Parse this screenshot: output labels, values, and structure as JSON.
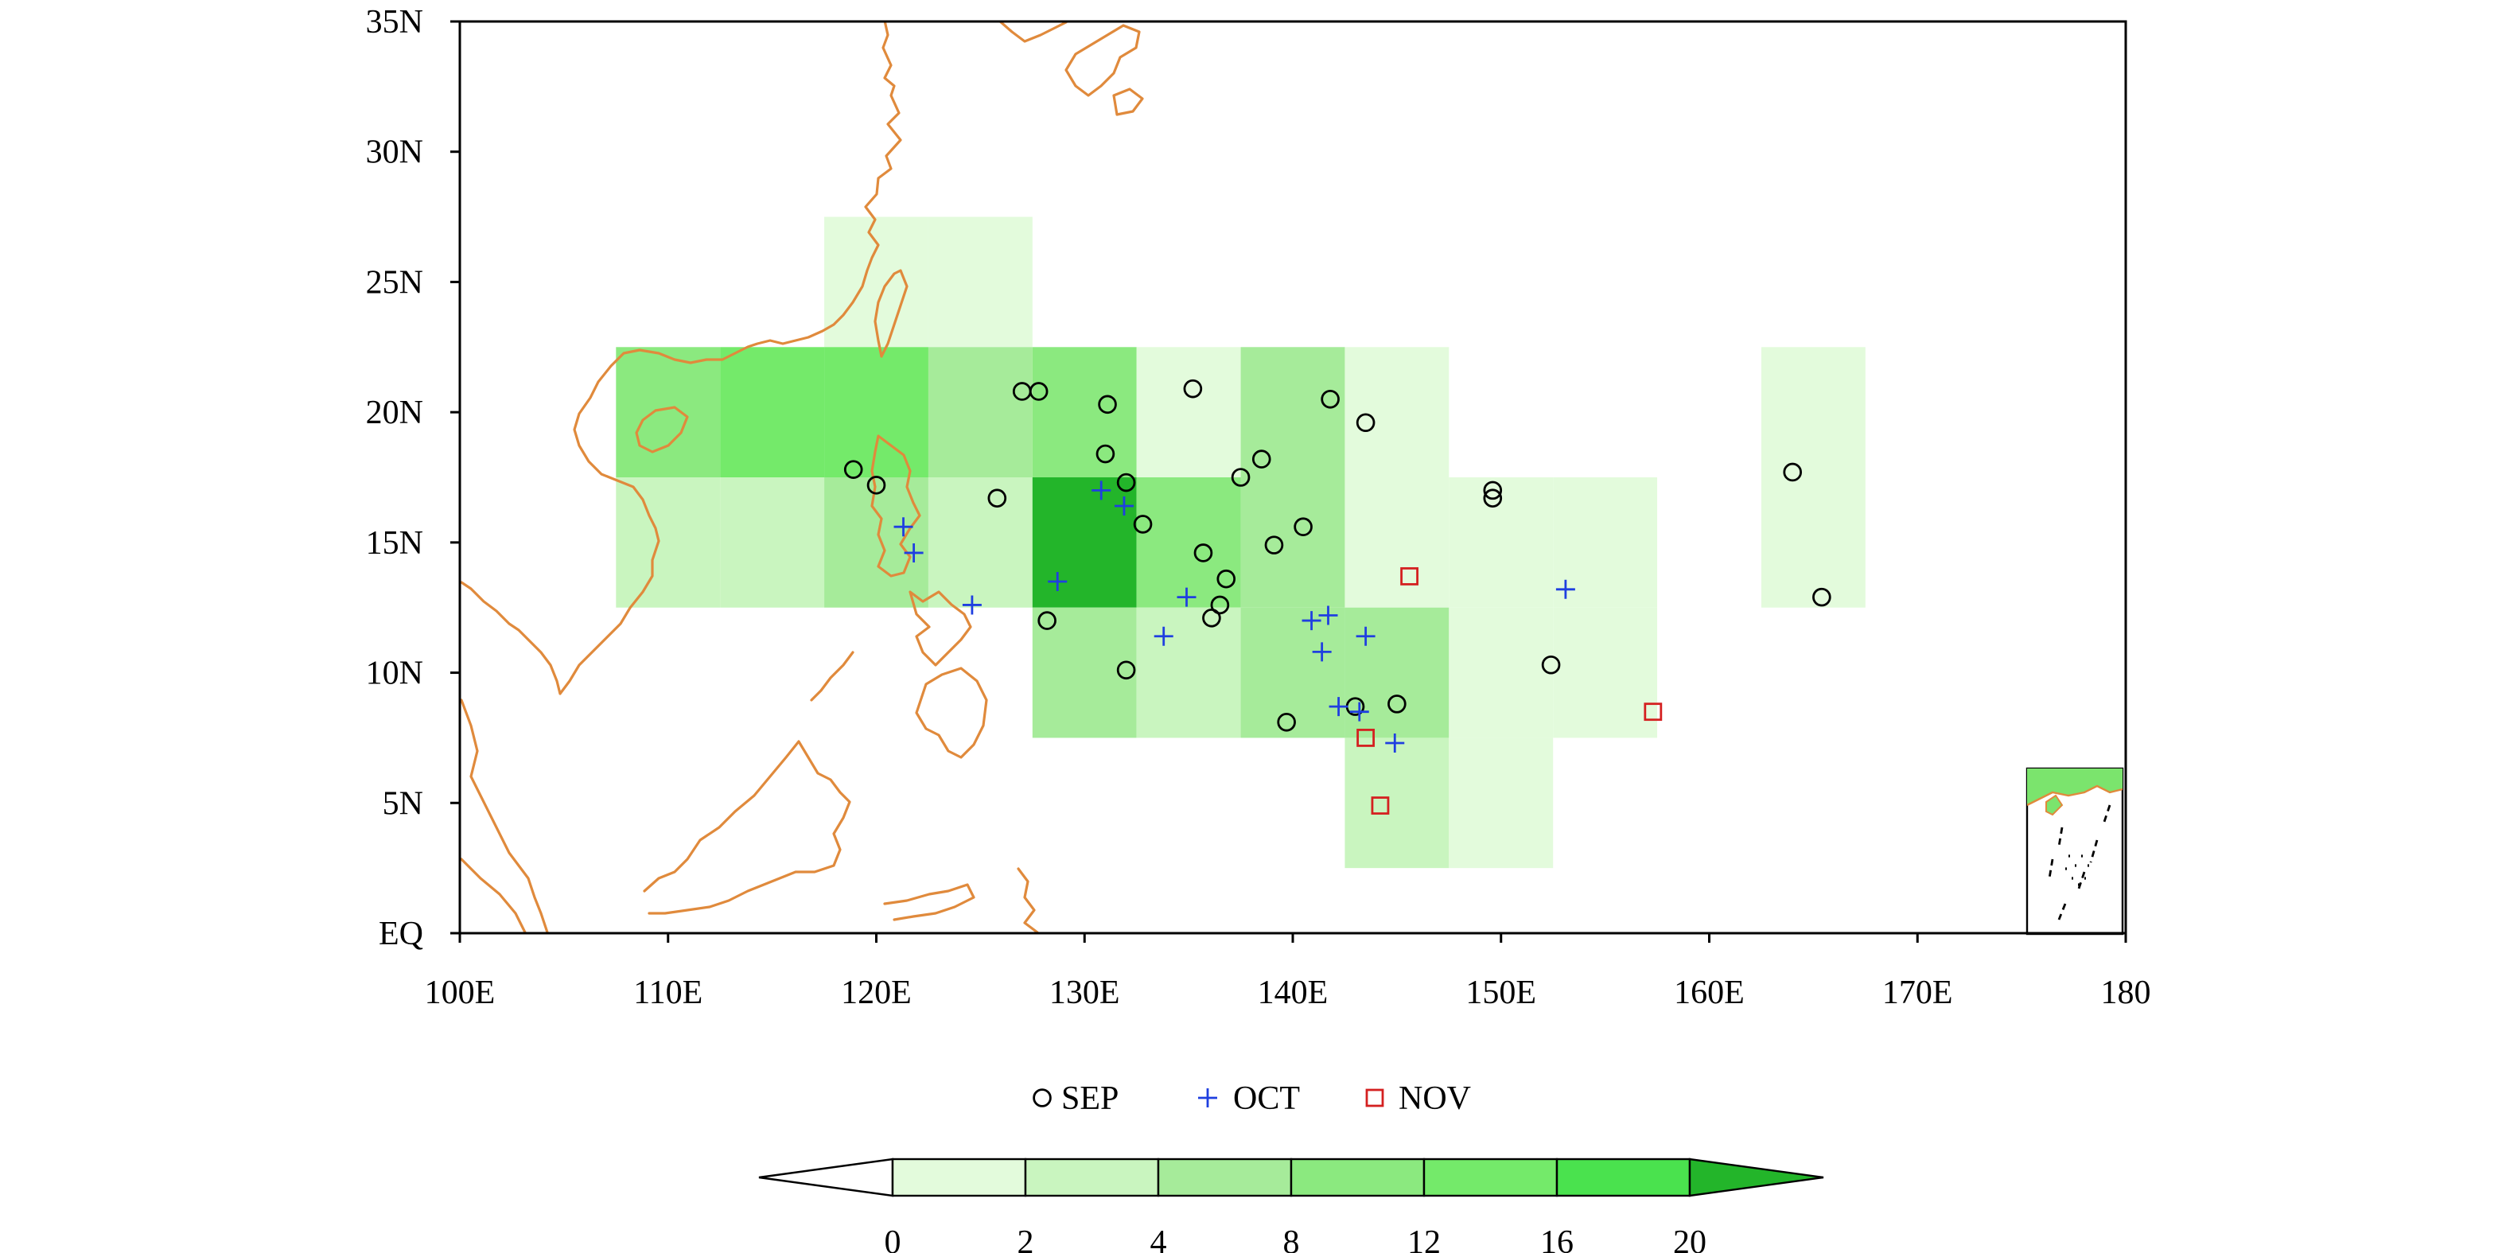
{
  "colors": {
    "coast": "#e08a3c",
    "frame": "#000000",
    "sep_marker": "#000000",
    "oct_marker": "#1f3fe0",
    "nov_marker": "#d42020",
    "inset_dash": "#000000"
  },
  "map": {
    "lon_ticks": [
      "100E",
      "110E",
      "120E",
      "130E",
      "140E",
      "150E",
      "160E",
      "170E",
      "180"
    ],
    "lat_ticks": [
      "EQ",
      "5N",
      "10N",
      "15N",
      "20N",
      "25N",
      "30N",
      "35N"
    ],
    "lon_range": [
      100,
      180
    ],
    "lat_range": [
      0,
      35
    ],
    "grid_cell_deg": 5
  },
  "density_grid": {
    "comment_free": true,
    "cells": [
      {
        "lon": 120,
        "lat": 25,
        "level": 1
      },
      {
        "lon": 125,
        "lat": 25,
        "level": 1
      },
      {
        "lon": 110,
        "lat": 20,
        "level": 4
      },
      {
        "lon": 115,
        "lat": 20,
        "level": 5
      },
      {
        "lon": 120,
        "lat": 20,
        "level": 5
      },
      {
        "lon": 125,
        "lat": 20,
        "level": 3
      },
      {
        "lon": 130,
        "lat": 20,
        "level": 4
      },
      {
        "lon": 135,
        "lat": 20,
        "level": 1
      },
      {
        "lon": 140,
        "lat": 20,
        "level": 3
      },
      {
        "lon": 145,
        "lat": 20,
        "level": 1
      },
      {
        "lon": 165,
        "lat": 20,
        "level": 1
      },
      {
        "lon": 110,
        "lat": 15,
        "level": 2
      },
      {
        "lon": 115,
        "lat": 15,
        "level": 2
      },
      {
        "lon": 120,
        "lat": 15,
        "level": 3
      },
      {
        "lon": 125,
        "lat": 15,
        "level": 2
      },
      {
        "lon": 130,
        "lat": 15,
        "level": 7
      },
      {
        "lon": 135,
        "lat": 15,
        "level": 4
      },
      {
        "lon": 140,
        "lat": 15,
        "level": 3
      },
      {
        "lon": 145,
        "lat": 15,
        "level": 1
      },
      {
        "lon": 150,
        "lat": 15,
        "level": 1
      },
      {
        "lon": 155,
        "lat": 15,
        "level": 1
      },
      {
        "lon": 165,
        "lat": 15,
        "level": 1
      },
      {
        "lon": 130,
        "lat": 10,
        "level": 3
      },
      {
        "lon": 135,
        "lat": 10,
        "level": 2
      },
      {
        "lon": 140,
        "lat": 10,
        "level": 3
      },
      {
        "lon": 145,
        "lat": 10,
        "level": 3
      },
      {
        "lon": 150,
        "lat": 10,
        "level": 1
      },
      {
        "lon": 155,
        "lat": 10,
        "level": 1
      },
      {
        "lon": 145,
        "lat": 5,
        "level": 2
      },
      {
        "lon": 150,
        "lat": 5,
        "level": 1
      }
    ]
  },
  "colorbar": {
    "labels": [
      "0",
      "2",
      "4",
      "8",
      "12",
      "16",
      "20"
    ],
    "level_colors": [
      "#ffffff",
      "#e3fbdc",
      "#c9f5bf",
      "#a6eb9a",
      "#8be97f",
      "#74ea6a",
      "#4ae24e",
      "#23b52a"
    ]
  },
  "legend": {
    "sep_label": "SEP",
    "oct_label": "OCT",
    "nov_label": "NOV"
  },
  "points": {
    "sep": [
      [
        118.9,
        17.8
      ],
      [
        120.0,
        17.2
      ],
      [
        125.8,
        16.7
      ],
      [
        127.0,
        20.8
      ],
      [
        127.8,
        20.8
      ],
      [
        131.1,
        20.3
      ],
      [
        131.0,
        18.4
      ],
      [
        132.0,
        17.3
      ],
      [
        132.8,
        15.7
      ],
      [
        128.2,
        12.0
      ],
      [
        132.0,
        10.1
      ],
      [
        135.2,
        20.9
      ],
      [
        135.7,
        14.6
      ],
      [
        136.8,
        13.6
      ],
      [
        136.5,
        12.6
      ],
      [
        136.1,
        12.1
      ],
      [
        137.5,
        17.5
      ],
      [
        138.5,
        18.2
      ],
      [
        139.1,
        14.9
      ],
      [
        140.5,
        15.6
      ],
      [
        139.7,
        8.1
      ],
      [
        141.8,
        20.5
      ],
      [
        143.5,
        19.6
      ],
      [
        143.0,
        8.7
      ],
      [
        145.0,
        8.8
      ],
      [
        149.6,
        17.0
      ],
      [
        149.6,
        16.7
      ],
      [
        152.4,
        10.3
      ],
      [
        164.0,
        17.7
      ],
      [
        165.4,
        12.9
      ]
    ],
    "oct": [
      [
        121.3,
        15.6
      ],
      [
        121.8,
        14.6
      ],
      [
        124.6,
        12.6
      ],
      [
        128.7,
        13.5
      ],
      [
        130.8,
        17.0
      ],
      [
        131.9,
        16.4
      ],
      [
        133.8,
        11.4
      ],
      [
        134.9,
        12.9
      ],
      [
        140.9,
        12.0
      ],
      [
        141.7,
        12.2
      ],
      [
        141.4,
        10.8
      ],
      [
        142.2,
        8.7
      ],
      [
        143.2,
        8.5
      ],
      [
        143.5,
        11.4
      ],
      [
        144.9,
        7.3
      ],
      [
        153.1,
        13.2
      ]
    ],
    "nov": [
      [
        145.6,
        13.7
      ],
      [
        143.5,
        7.5
      ],
      [
        144.2,
        4.9
      ],
      [
        157.3,
        8.5
      ]
    ]
  }
}
